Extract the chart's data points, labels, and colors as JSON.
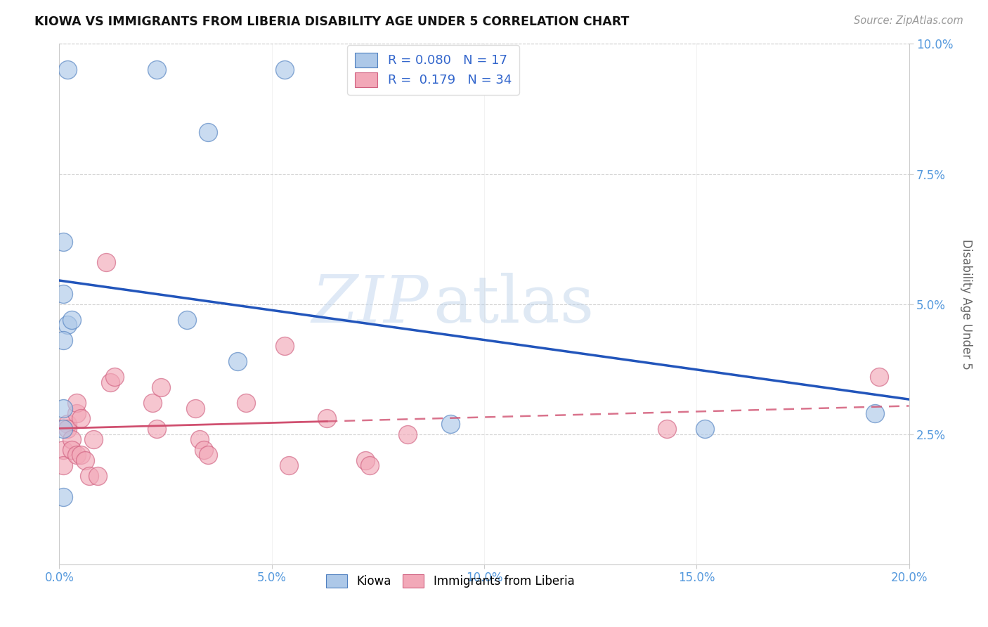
{
  "title": "KIOWA VS IMMIGRANTS FROM LIBERIA DISABILITY AGE UNDER 5 CORRELATION CHART",
  "source": "Source: ZipAtlas.com",
  "ylabel": "Disability Age Under 5",
  "xlim": [
    0.0,
    0.2
  ],
  "ylim": [
    0.0,
    0.1
  ],
  "xticks": [
    0.0,
    0.05,
    0.1,
    0.15,
    0.2
  ],
  "yticks": [
    0.025,
    0.05,
    0.075,
    0.1
  ],
  "xticklabels": [
    "0.0%",
    "5.0%",
    "10.0%",
    "15.0%",
    "20.0%"
  ],
  "yticklabels": [
    "2.5%",
    "5.0%",
    "7.5%",
    "10.0%"
  ],
  "R_kiowa": 0.08,
  "N_kiowa": 17,
  "R_liberia": 0.179,
  "N_liberia": 34,
  "kiowa_color": "#adc8e8",
  "liberia_color": "#f2a8b8",
  "kiowa_edge_color": "#5080c0",
  "liberia_edge_color": "#d06080",
  "kiowa_line_color": "#2255bb",
  "liberia_line_color": "#d05070",
  "watermark_zip": "ZIP",
  "watermark_atlas": "atlas",
  "legend_text_color": "#3366cc",
  "tick_color": "#5599dd",
  "kiowa_x": [
    0.002,
    0.023,
    0.035,
    0.001,
    0.001,
    0.002,
    0.003,
    0.001,
    0.001,
    0.03,
    0.042,
    0.001,
    0.001,
    0.152,
    0.192,
    0.092,
    0.053
  ],
  "kiowa_y": [
    0.095,
    0.095,
    0.083,
    0.062,
    0.052,
    0.046,
    0.047,
    0.043,
    0.03,
    0.047,
    0.039,
    0.026,
    0.013,
    0.026,
    0.029,
    0.027,
    0.095
  ],
  "liberia_x": [
    0.001,
    0.001,
    0.002,
    0.002,
    0.003,
    0.003,
    0.004,
    0.004,
    0.004,
    0.005,
    0.005,
    0.006,
    0.007,
    0.008,
    0.009,
    0.011,
    0.012,
    0.013,
    0.022,
    0.023,
    0.024,
    0.032,
    0.033,
    0.034,
    0.035,
    0.044,
    0.053,
    0.054,
    0.063,
    0.072,
    0.073,
    0.082,
    0.143,
    0.193
  ],
  "liberia_y": [
    0.022,
    0.019,
    0.027,
    0.026,
    0.024,
    0.022,
    0.029,
    0.031,
    0.021,
    0.028,
    0.021,
    0.02,
    0.017,
    0.024,
    0.017,
    0.058,
    0.035,
    0.036,
    0.031,
    0.026,
    0.034,
    0.03,
    0.024,
    0.022,
    0.021,
    0.031,
    0.042,
    0.019,
    0.028,
    0.02,
    0.019,
    0.025,
    0.026,
    0.036
  ]
}
